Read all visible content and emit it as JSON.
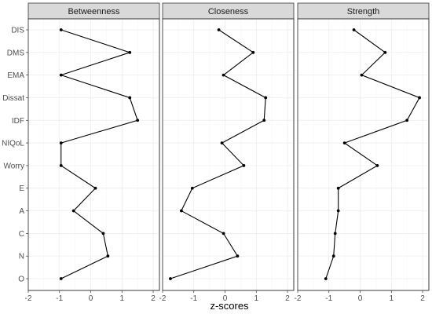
{
  "chart_data": {
    "type": "line",
    "xlabel": "z-scores",
    "ylabel": "",
    "xlim": [
      -2,
      2.2
    ],
    "x_ticks": [
      "-2",
      "-1",
      "0",
      "1",
      "2"
    ],
    "categories": [
      "DIS",
      "DMS",
      "EMA",
      "Dissat",
      "IDF",
      "NIQoL",
      "Worry",
      "E",
      "A",
      "C",
      "N",
      "O"
    ],
    "grid": true,
    "panels": [
      {
        "title": "Betweenness",
        "values": [
          -0.95,
          1.25,
          -0.95,
          1.25,
          1.5,
          -0.95,
          -0.95,
          0.15,
          -0.55,
          0.4,
          0.55,
          -0.95
        ]
      },
      {
        "title": "Closeness",
        "values": [
          -0.2,
          0.9,
          -0.05,
          1.3,
          1.25,
          -0.1,
          0.6,
          -1.05,
          -1.4,
          -0.05,
          0.4,
          -1.75
        ]
      },
      {
        "title": "Strength",
        "values": [
          -0.2,
          0.8,
          0.05,
          1.9,
          1.5,
          -0.5,
          0.55,
          -0.7,
          -0.7,
          -0.8,
          -0.85,
          -1.1
        ]
      }
    ]
  }
}
